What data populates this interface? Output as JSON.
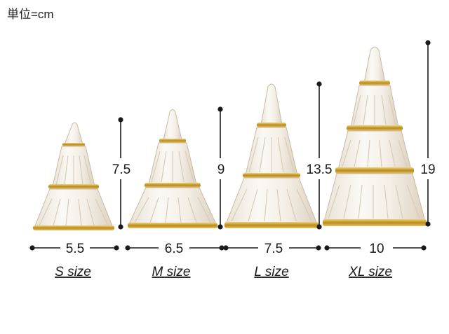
{
  "unit_label": "単位=cm",
  "colors": {
    "gold": "#c8a02e",
    "glass_edge": "#b9a98f",
    "ink": "#1a1a1a"
  },
  "products": [
    {
      "size_label": "S size",
      "width_label": "5.5",
      "height_label": "7.5"
    },
    {
      "size_label": "M size",
      "width_label": "6.5",
      "height_label": "9"
    },
    {
      "size_label": "L size",
      "width_label": "7.5",
      "height_label": "13.5"
    },
    {
      "size_label": "XL size",
      "width_label": "10",
      "height_label": "19"
    }
  ]
}
